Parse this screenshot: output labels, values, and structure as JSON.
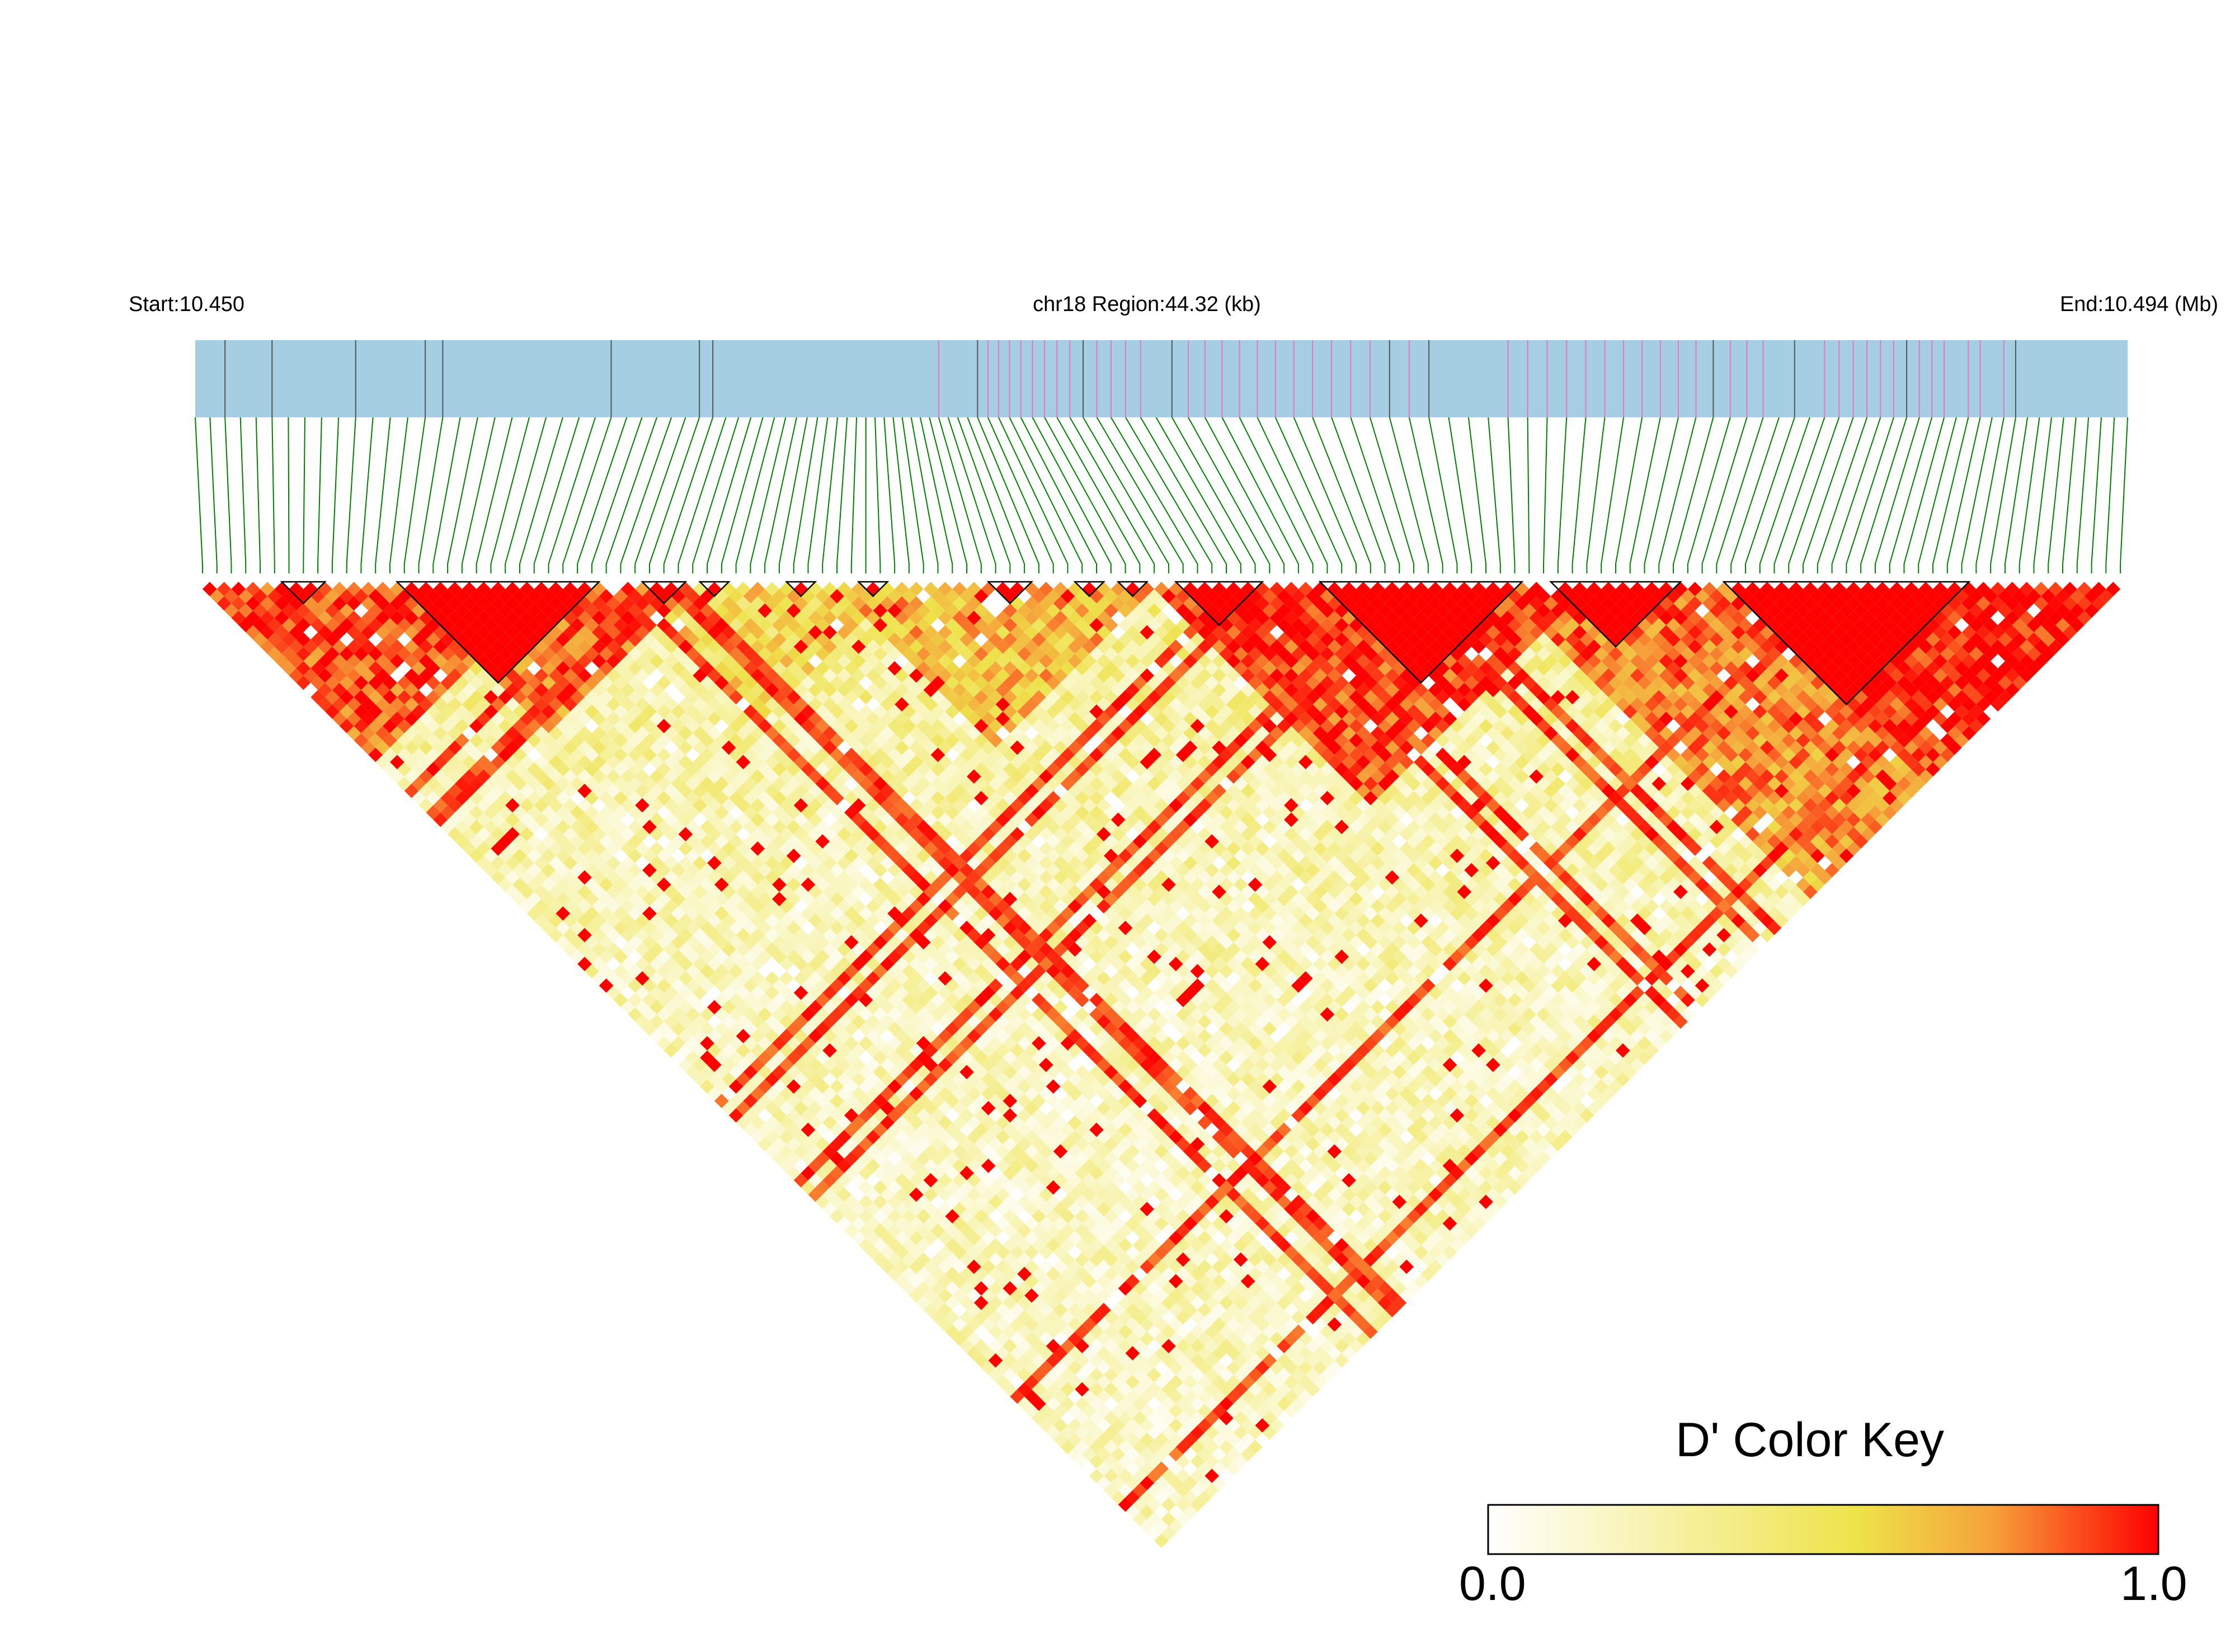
{
  "header": {
    "start_label": "Start:10.450",
    "region_label": "chr18 Region:44.32 (kb)",
    "end_label": "End:10.494 (Mb)"
  },
  "legend": {
    "title": "D' Color Key",
    "min_label": "0.0",
    "max_label": "1.0"
  },
  "colors": {
    "gene_track": "#a6cee3",
    "snp_tick_pink": "#e377c2",
    "snp_tick_gray": "#555555",
    "connector": "#008000",
    "d_prime_0": "#ffffff",
    "d_prime_0_5": "#f2e34a",
    "d_prime_1": "#ff0000",
    "block_outline": "#000000"
  },
  "chart_data": {
    "type": "heatmap",
    "title": "chr18 Region:44.32 (kb)",
    "metric": "D'",
    "chromosome": "chr18",
    "region_start_mb": 10.45,
    "region_end_mb": 10.494,
    "region_length_kb": 44.32,
    "snp_count": 134,
    "color_scale": {
      "min": 0.0,
      "max": 1.0,
      "stops": [
        "#ffffff",
        "#f2e34a",
        "#ff0000"
      ]
    },
    "haplotype_blocks": [
      [
        6,
        8
      ],
      [
        14,
        27
      ],
      [
        31,
        33
      ],
      [
        35,
        36
      ],
      [
        41,
        42
      ],
      [
        46,
        47
      ],
      [
        55,
        57
      ],
      [
        61,
        62
      ],
      [
        64,
        65
      ],
      [
        68,
        73
      ],
      [
        78,
        91
      ],
      [
        94,
        102
      ],
      [
        106,
        122
      ]
    ],
    "bands": [
      {
        "snps": [
          0,
          24
        ],
        "value": 0.92
      },
      {
        "snps": [
          14,
          34
        ],
        "value": 0.85
      },
      {
        "snps": [
          30,
          48
        ],
        "value": 0.6
      },
      {
        "snps": [
          44,
          66
        ],
        "value": 0.7
      },
      {
        "snps": [
          66,
          96
        ],
        "value": 0.95
      },
      {
        "snps": [
          90,
          134
        ],
        "value": 0.85
      },
      {
        "snps": [
          106,
          134
        ],
        "value": 1.0
      }
    ],
    "gene_ticks_pink": [
      54,
      59,
      60,
      61,
      62,
      63,
      64,
      65,
      66,
      68,
      69,
      70,
      71,
      74,
      75,
      76,
      77,
      78,
      79,
      80,
      81,
      82,
      83,
      84,
      86,
      91,
      92,
      93,
      94,
      95,
      96,
      97,
      98,
      99,
      100,
      101,
      103,
      104,
      105,
      109,
      110,
      111,
      112,
      113,
      114,
      116,
      117,
      118,
      120,
      121,
      123
    ],
    "gene_ticks_gray": [
      2,
      5,
      10,
      14,
      15,
      25,
      31,
      32,
      58,
      67,
      73,
      85,
      87,
      102,
      107,
      115,
      124
    ]
  }
}
